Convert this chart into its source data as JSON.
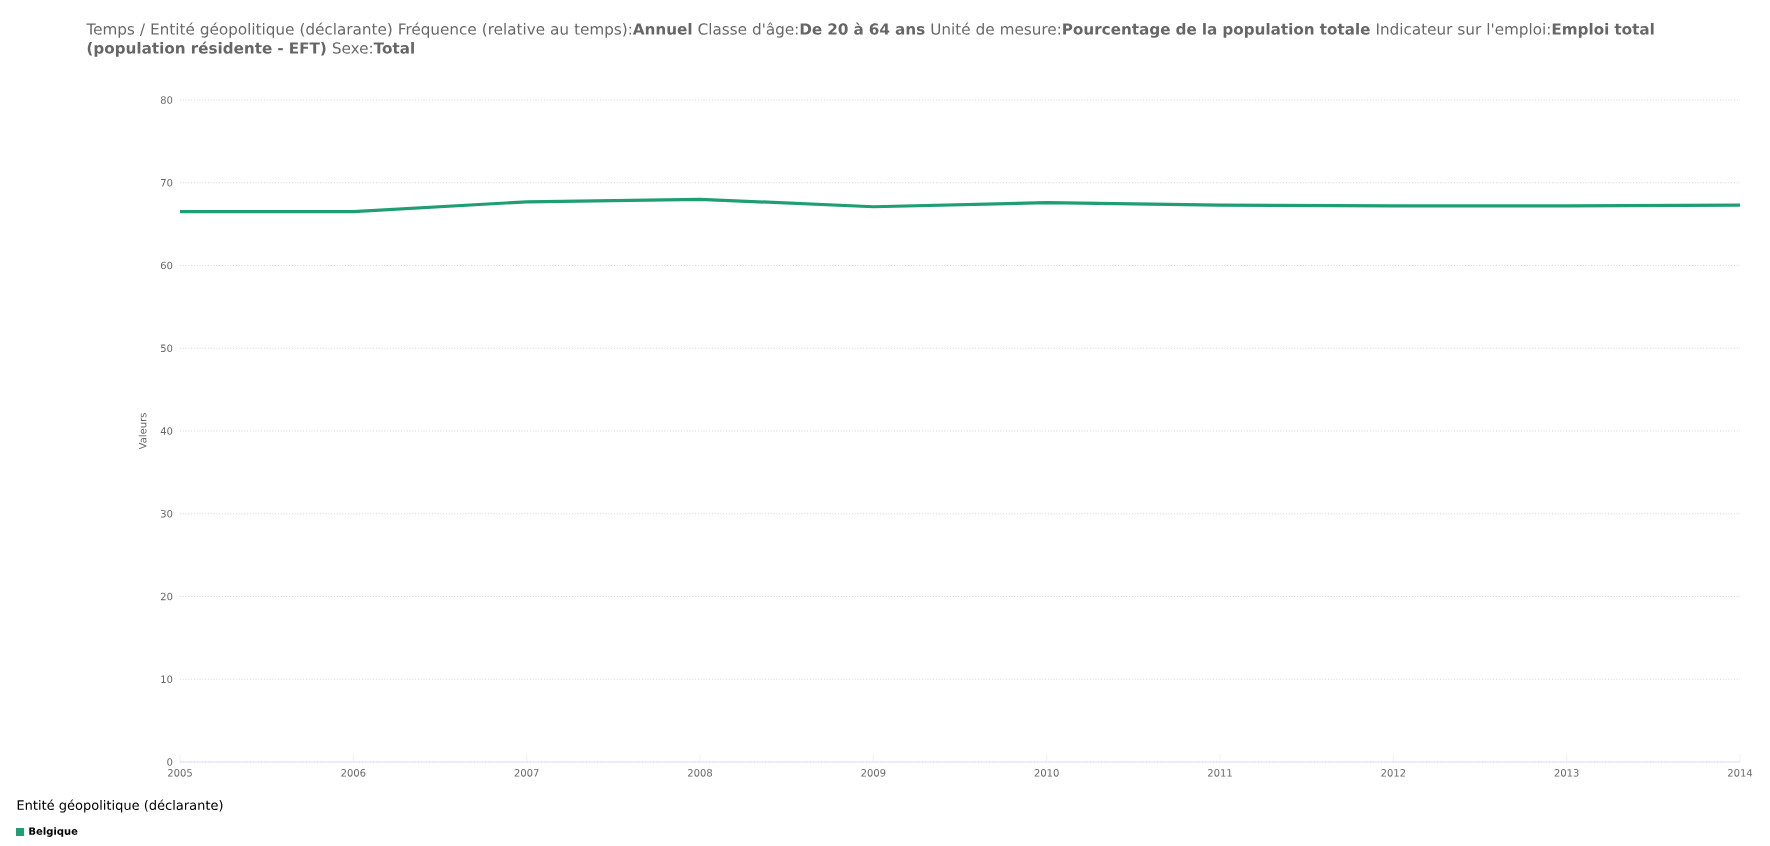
{
  "chart_data": {
    "type": "line",
    "title": "Temps / Entité géopolitique (déclarante)  Fréquence (relative au temps):**Annuel**  Classe d'âge:**De 20 à 64 ans**  Unité de mesure:**Pourcentage de la population totale**  Indicateur sur l'emploi:**Emploi total (population résidente - EFT)**  Sexe:**Total**",
    "ylabel": "Valeurs",
    "legend_title": "Entité géopolitique (déclarante)",
    "x": [
      2005,
      2006,
      2007,
      2008,
      2009,
      2010,
      2011,
      2012,
      2013,
      2014
    ],
    "series": [
      {
        "name": "Belgique",
        "color": "#1f9e74",
        "values": [
          66.5,
          66.5,
          67.7,
          68.0,
          67.1,
          67.6,
          67.3,
          67.2,
          67.2,
          67.3
        ]
      }
    ],
    "xlim": [
      2005,
      2014
    ],
    "xticks": [
      2005,
      2006,
      2007,
      2008,
      2009,
      2010,
      2011,
      2012,
      2013,
      2014
    ],
    "ylim": [
      0,
      80
    ],
    "yticks": [
      0,
      10,
      20,
      30,
      40,
      50,
      60,
      70,
      80
    ],
    "grid": "y",
    "legend": "bottom left",
    "marker": "none",
    "line_style": "solid"
  }
}
